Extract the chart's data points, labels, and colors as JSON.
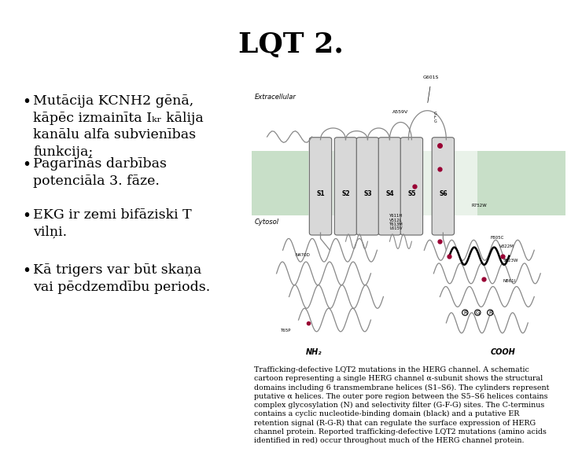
{
  "title": "LQT 2.",
  "title_fontsize": 26,
  "title_fontweight": "bold",
  "bg_color": "#ffffff",
  "bullet_points": [
    "Mutācija KCNH2 gēnā,\nkāpēc izmainīta Iₖᵣ kālija\nkanālu alfa subvienības\nfunkcija;",
    "Pagarinās darbības\npotenciāla 3. fāze.",
    "EKG ir zemi bifāziski T\nvilņi.",
    "Kā trigers var būt skaņa\nvai pēcdzemdību periods."
  ],
  "bullet_fontsize": 12.5,
  "caption_text": "Trafficking-defective LQT2 mutations in the HERG channel. A schematic\ncartoon representing a single HERG channel α-subunit shows the structural\ndomains including 6 transmembrane helices (S1–S6). The cylinders represent\nputative α helices. The outer pore region between the S5–S6 helices contains\ncomplex glycosylation (N) and selectivity filter (G-F-G) sites. The C-terminus\ncontains a cyclic nucleotide-binding domain (black) and a putative ER\nretention signal (R-G-R) that can regulate the surface expression of HERG\nchannel protein. Reported trafficking-defective LQT2 mutations (amino acids\nidentified in red) occur throughout much of the HERG channel protein.",
  "caption_fontsize": 6.8,
  "text_color": "#000000",
  "membrane_color": "#c8dfc8",
  "helix_color": "#d8d8d8",
  "chain_color": "#888888",
  "mutation_color": "#990033"
}
